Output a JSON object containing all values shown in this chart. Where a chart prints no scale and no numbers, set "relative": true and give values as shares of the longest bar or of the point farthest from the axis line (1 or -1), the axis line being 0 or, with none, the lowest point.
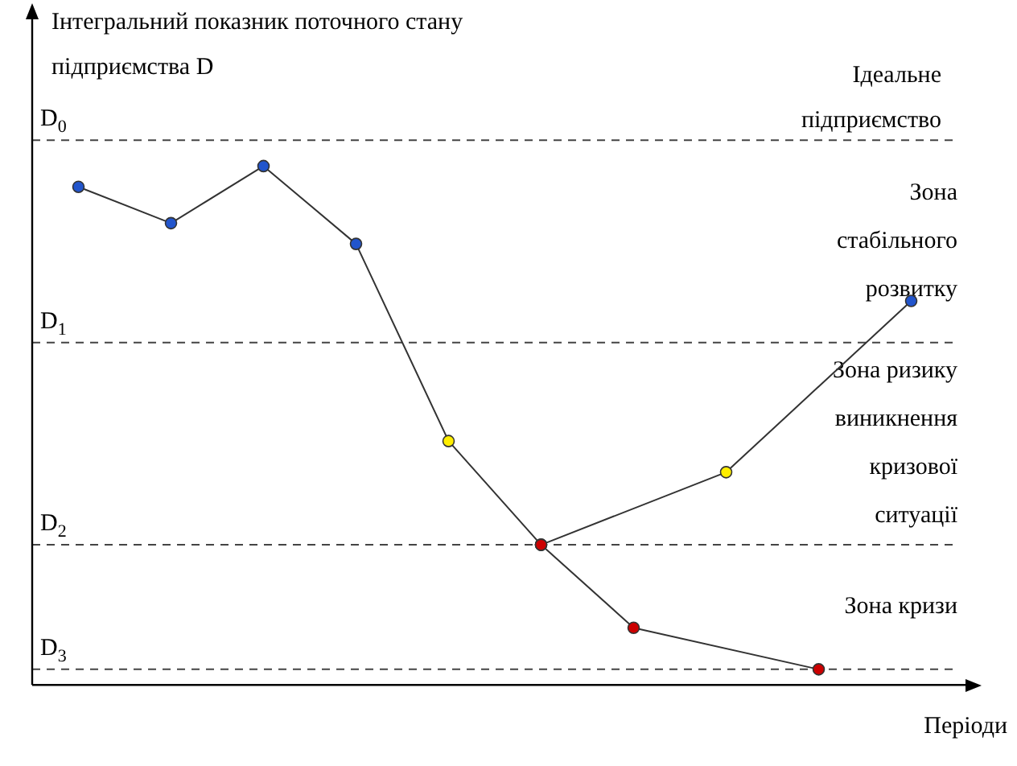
{
  "chart_data": {
    "type": "line",
    "relative": true,
    "ylabel": "Інтегральний показник поточного стану підприємства D",
    "xlabel": "Періоди",
    "categories": [
      null,
      null,
      null,
      null,
      null,
      null,
      null,
      null,
      null,
      null
    ],
    "series": [
      {
        "color": "#333333",
        "colors": [
          "#2255cc",
          "#2255cc",
          "#2255cc",
          "#2255cc",
          "#ffee00",
          "#cc0000",
          null,
          null,
          null,
          null
        ],
        "values": [
          0.96,
          0.89,
          1,
          0.85,
          0.47,
          0.27,
          null,
          null,
          null,
          null
        ]
      },
      {
        "color": "#333333",
        "colors": [
          null,
          null,
          null,
          null,
          null,
          "#cc0000",
          "#cc0000",
          null,
          "#cc0000",
          null
        ],
        "values": [
          null,
          null,
          null,
          null,
          null,
          0.27,
          0.11,
          null,
          0.03,
          null
        ]
      },
      {
        "color": "#333333",
        "colors": [
          null,
          null,
          null,
          null,
          null,
          "#cc0000",
          null,
          "#ffee00",
          null,
          "#2255cc"
        ],
        "values": [
          null,
          null,
          null,
          null,
          null,
          0.27,
          null,
          0.41,
          null,
          0.74
        ]
      }
    ],
    "marker": "circle",
    "line_style": "solid",
    "legend": false,
    "grid": false,
    "ref_lines": [
      {
        "axis": "y",
        "value": 1.05,
        "label": "D$_{0}$",
        "line_style": "dashed",
        "color": "#444444"
      },
      {
        "axis": "y",
        "value": 0.66,
        "label": "D$_{1}$",
        "line_style": "dashed",
        "color": "#444444"
      },
      {
        "axis": "y",
        "value": 0.27,
        "label": "D$_{2}$",
        "line_style": "dashed",
        "color": "#444444"
      },
      {
        "axis": "y",
        "value": 0.03,
        "label": "D$_{3}$",
        "line_style": "dashed",
        "color": "#444444"
      }
    ],
    "annotations": [
      "Ідеальне підприємство",
      "Зона стабільного розвитку",
      "Зона ризику виникнення кризової ситуації",
      "Зона кризи"
    ]
  }
}
